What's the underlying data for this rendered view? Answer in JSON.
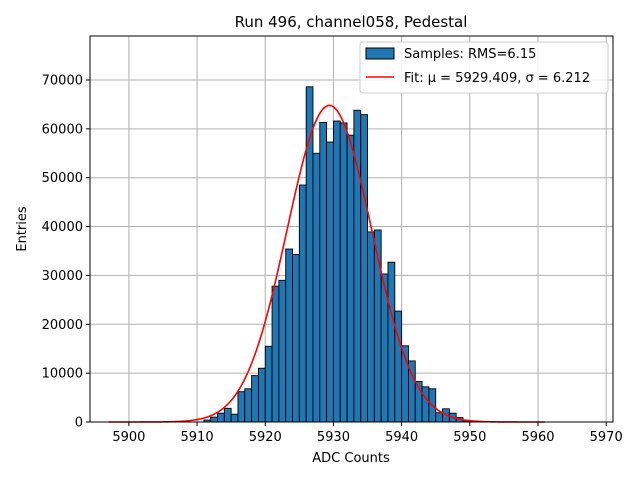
{
  "chart_data": {
    "type": "bar",
    "title": "Run 496, channel058, Pedestal",
    "xlabel": "ADC Counts",
    "ylabel": "Entries",
    "xlim": [
      5894.3,
      5971.0
    ],
    "ylim": [
      0,
      79000
    ],
    "grid": true,
    "legend_position": "top-right",
    "x_ticks": [
      "5900",
      "5910",
      "5920",
      "5930",
      "5940",
      "5950",
      "5960",
      "5970"
    ],
    "y_ticks": [
      "0",
      "10000",
      "20000",
      "30000",
      "40000",
      "50000",
      "60000",
      "70000"
    ],
    "bin_width": 1,
    "bin_start": 5911,
    "counts": [
      400,
      1000,
      1800,
      2800,
      1600,
      6200,
      6800,
      9500,
      11000,
      15500,
      27800,
      29000,
      35400,
      34300,
      48500,
      68600,
      55000,
      61300,
      57300,
      61600,
      61200,
      58700,
      63800,
      62900,
      38900,
      39300,
      30300,
      32700,
      22700,
      15600,
      12500,
      8300,
      7200,
      6800,
      1900,
      2700,
      1800,
      900,
      200
    ],
    "fit_curve": {
      "mu": 5929.409,
      "sigma": 6.212,
      "amplitude": 64800,
      "x_range": [
        5897,
        5961
      ]
    },
    "legend": [
      {
        "label": "Samples: RMS=6.15",
        "color": "#1f77b4",
        "kind": "patch"
      },
      {
        "label": "Fit: μ = 5929.409, σ = 6.212",
        "color": "#ff0000",
        "kind": "line"
      }
    ]
  }
}
